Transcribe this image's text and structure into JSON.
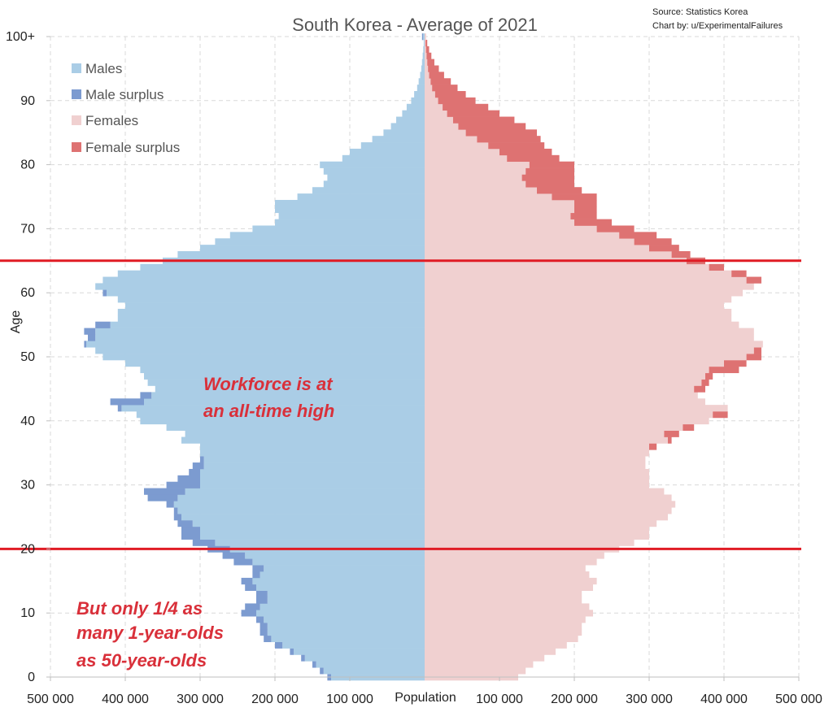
{
  "chart_data": {
    "type": "bar",
    "orientation": "horizontal",
    "layout": "population-pyramid",
    "title": "South Korea - Average of 2021",
    "source_lines": [
      "Source: Statistics Korea",
      "Chart by: u/ExperimentalFailures"
    ],
    "xlabel": "Population",
    "ylabel": "Age",
    "xlim": [
      -500000,
      500000
    ],
    "ylim": [
      0,
      100
    ],
    "x_ticks": [
      -500000,
      -400000,
      -300000,
      -200000,
      -100000,
      100000,
      200000,
      300000,
      400000,
      500000
    ],
    "x_tick_labels": [
      "500 000",
      "400 000",
      "300 000",
      "200 000",
      "100 000",
      "100 000",
      "200 000",
      "300 000",
      "400 000",
      "500 000"
    ],
    "y_ticks": [
      0,
      10,
      20,
      30,
      40,
      50,
      60,
      70,
      80,
      90,
      100
    ],
    "y_tick_labels": [
      "0",
      "10",
      "20",
      "30",
      "40",
      "50",
      "60",
      "70",
      "80",
      "90",
      "100+"
    ],
    "grid": true,
    "legend_position": "top-left",
    "colors": {
      "males": "#aacde6",
      "male_surplus": "#7c9bd0",
      "females": "#f0d0d0",
      "female_surplus": "#de7272",
      "reference_line": "#e01b24",
      "annotation": "#d9303a"
    },
    "series": [
      {
        "name": "Males"
      },
      {
        "name": "Male surplus"
      },
      {
        "name": "Females"
      },
      {
        "name": "Female surplus"
      }
    ],
    "ages": [
      0,
      1,
      2,
      3,
      4,
      5,
      6,
      7,
      8,
      9,
      10,
      11,
      12,
      13,
      14,
      15,
      16,
      17,
      18,
      19,
      20,
      21,
      22,
      23,
      24,
      25,
      26,
      27,
      28,
      29,
      30,
      31,
      32,
      33,
      34,
      35,
      36,
      37,
      38,
      39,
      40,
      41,
      42,
      43,
      44,
      45,
      46,
      47,
      48,
      49,
      50,
      51,
      52,
      53,
      54,
      55,
      56,
      57,
      58,
      59,
      60,
      61,
      62,
      63,
      64,
      65,
      66,
      67,
      68,
      69,
      70,
      71,
      72,
      73,
      74,
      75,
      76,
      77,
      78,
      79,
      80,
      81,
      82,
      83,
      84,
      85,
      86,
      87,
      88,
      89,
      90,
      91,
      92,
      93,
      94,
      95,
      96,
      97,
      98,
      99,
      100
    ],
    "males": [
      130000,
      140000,
      150000,
      165000,
      180000,
      200000,
      215000,
      220000,
      220000,
      225000,
      245000,
      240000,
      225000,
      225000,
      240000,
      245000,
      230000,
      230000,
      255000,
      270000,
      290000,
      310000,
      325000,
      325000,
      330000,
      335000,
      335000,
      345000,
      370000,
      375000,
      345000,
      330000,
      315000,
      310000,
      300000,
      300000,
      300000,
      325000,
      320000,
      345000,
      380000,
      385000,
      410000,
      420000,
      380000,
      360000,
      370000,
      375000,
      380000,
      400000,
      430000,
      440000,
      455000,
      450000,
      455000,
      440000,
      410000,
      410000,
      400000,
      410000,
      430000,
      440000,
      430000,
      410000,
      380000,
      350000,
      330000,
      300000,
      280000,
      260000,
      230000,
      200000,
      195000,
      200000,
      200000,
      170000,
      150000,
      135000,
      130000,
      135000,
      140000,
      110000,
      100000,
      85000,
      70000,
      55000,
      45000,
      38000,
      30000,
      24000,
      18000,
      14000,
      10000,
      8000,
      6000,
      4500,
      3500,
      2600,
      1800,
      1200,
      3500
    ],
    "females": [
      125000,
      135000,
      145000,
      160000,
      175000,
      190000,
      205000,
      210000,
      210000,
      215000,
      225000,
      220000,
      210000,
      210000,
      225000,
      230000,
      220000,
      215000,
      230000,
      240000,
      260000,
      280000,
      300000,
      300000,
      310000,
      325000,
      330000,
      335000,
      330000,
      320000,
      300000,
      300000,
      300000,
      295000,
      295000,
      300000,
      310000,
      330000,
      340000,
      360000,
      380000,
      405000,
      405000,
      375000,
      365000,
      375000,
      380000,
      385000,
      420000,
      430000,
      450000,
      450000,
      452000,
      440000,
      440000,
      420000,
      410000,
      410000,
      400000,
      410000,
      425000,
      440000,
      450000,
      430000,
      400000,
      375000,
      355000,
      340000,
      330000,
      310000,
      280000,
      250000,
      230000,
      230000,
      230000,
      230000,
      210000,
      200000,
      200000,
      200000,
      200000,
      180000,
      170000,
      160000,
      155000,
      150000,
      135000,
      120000,
      100000,
      85000,
      68000,
      55000,
      44000,
      35000,
      26000,
      19000,
      13000,
      9000,
      6000,
      3500,
      2000
    ],
    "annotations": [
      "Workforce is at",
      "an all-time high",
      "But only 1/4 as",
      "many 1-year-olds",
      "as 50-year-olds"
    ],
    "reference_lines": [
      {
        "axis": "y",
        "value": 20
      },
      {
        "axis": "y",
        "value": 65
      }
    ]
  }
}
